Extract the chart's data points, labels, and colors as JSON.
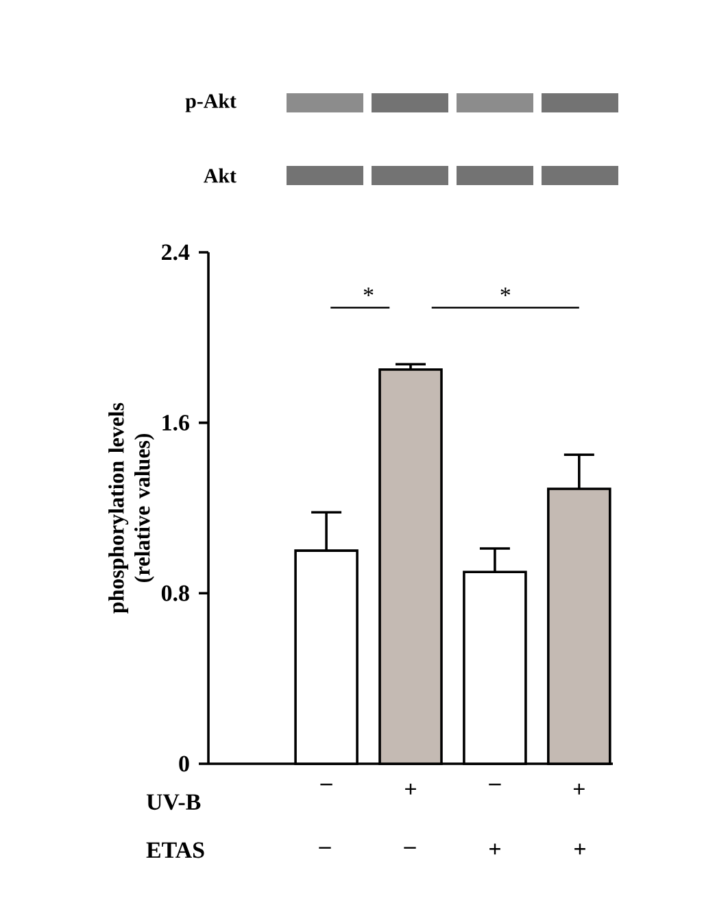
{
  "chart_data": {
    "type": "bar",
    "ylabel": "phosphorylation levels (relative values)",
    "categories": [
      "–",
      "+",
      "–",
      "+"
    ],
    "values": [
      1.0,
      1.85,
      0.9,
      1.29
    ],
    "colors": [
      "#ffffff",
      "#c4bab3",
      "#ffffff",
      "#c4bab3"
    ],
    "errors": [
      0.18,
      0.025,
      0.11,
      0.16
    ],
    "ylim": [
      0,
      2.4
    ],
    "yticks": [
      0,
      0.8,
      1.6,
      2.4
    ],
    "grid": false,
    "annotations": [
      "*",
      "*",
      "UV-B",
      "ETAS",
      "–",
      "–",
      "+",
      "+",
      "p-Akt",
      "Akt"
    ]
  }
}
